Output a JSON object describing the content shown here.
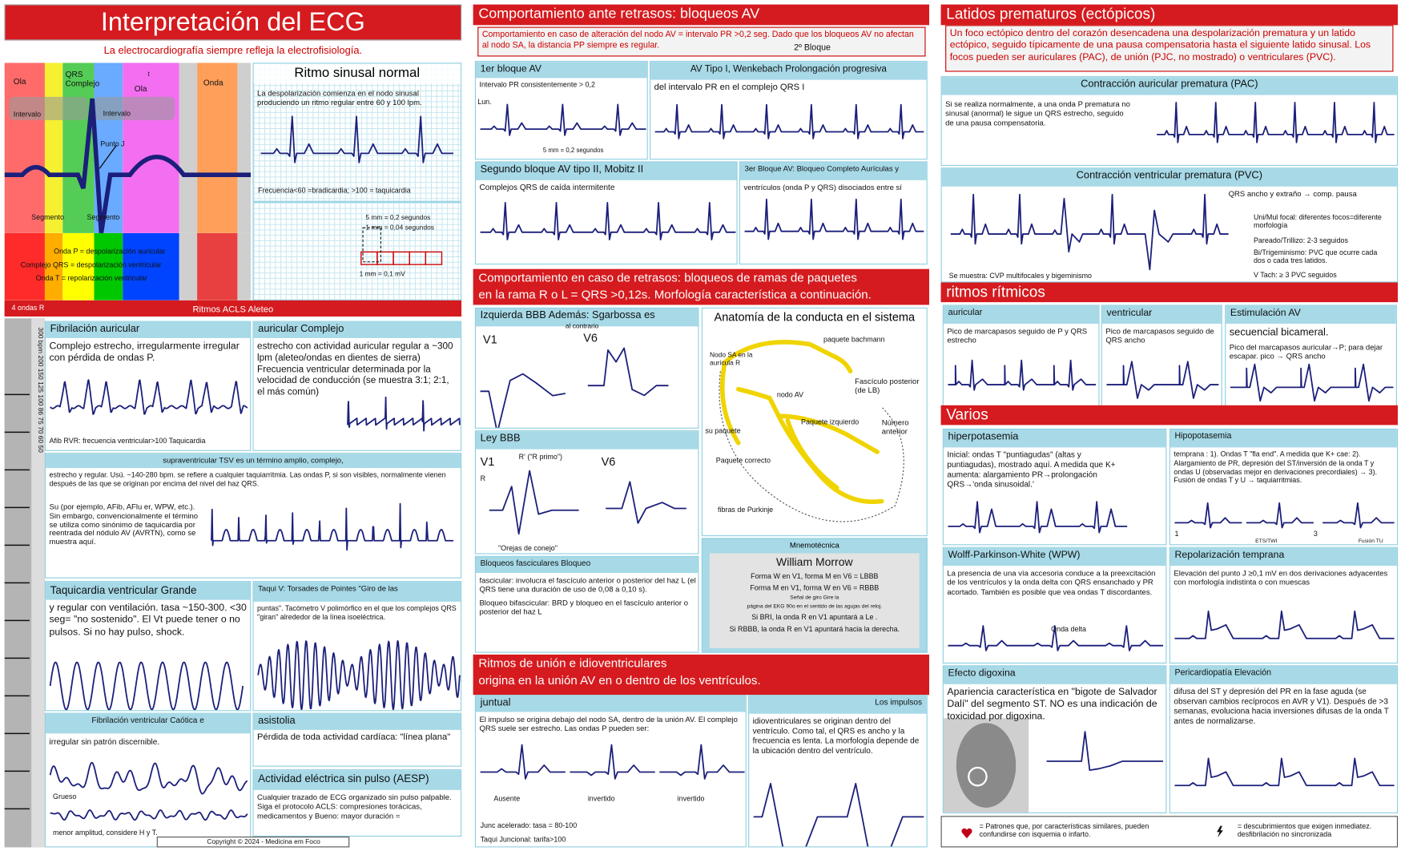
{
  "panels": [
    {
      "heading": "Interpretación del ECG"
    },
    {
      "text": [
        "La electrocardiografía siempre refleja la electrofisiología."
      ]
    },
    {
      "labels": [
        "Ola",
        "QRS Complejo",
        "t",
        "Ola",
        "Onda",
        "Intervalo",
        "Intervalo",
        "Punto J",
        "Segmento",
        "Segmento"
      ]
    },
    {
      "heading": "Ritmo sinusal normal",
      "text": [
        "La despolarización comienza en el nodo sinusal produciendo un ritmo regular entre 60 y 100 lpm."
      ],
      "labels": [
        "Frecuencia<60 =bradicardia; >100 = taquicardia"
      ]
    },
    {
      "labels": [
        "5 mm = 0,2 segundos",
        "1 mm = 0,04 segundos",
        "1 mm = 0,1 mV"
      ]
    },
    {
      "labels": [
        "Onda P = despolarización auricular",
        "Complejo QRS = despolarización ventricular",
        "Onda T = repolarización ventricular"
      ]
    },
    {
      "heading": "Ritmos ACLS Aleteo",
      "labels": [
        "4 ondas R"
      ]
    },
    {
      "labels": [
        "300 bpm 200 150 125 100 86 75 70 60 50"
      ]
    },
    {
      "heading": "Fibrilación auricular",
      "text": [
        "Complejo estrecho, irregularmente irregular con pérdida de ondas P."
      ],
      "labels": [
        "Afib RVR: frecuencia ventricular>100 Taquicardia"
      ]
    },
    {
      "heading": "auricular Complejo",
      "text": [
        "estrecho con actividad auricular regular a ~300 lpm (aleteo/ondas en dientes de sierra) Frecuencia ventricular determinada por la velocidad de conducción (se muestra 3:1; 2:1, el más común)"
      ]
    },
    {
      "heading": "supraventricular TSV es un término amplio, complejo,",
      "text": [
        "estrecho y regular. Usú. ~140-280 bpm. se refiere a cualquier taquiarritmia. Las ondas P, si son visibles, normalmente vienen después de las que se originan por encima del nivel del haz QRS."
      ],
      "labels": [
        "Su (por ejemplo, AFib, AFlu er, WPW, etc.). Sin embargo, convencionalmente el término se utiliza como sinónimo de taquicardia por reentrada del nódulo AV (AVRTN), como se muestra aquí."
      ]
    },
    {
      "heading": "Taquicardia ventricular Grande",
      "text": [
        "y regular con ventilación. tasa ~150-300. <30 seg= \"no sostenido\". El Vt puede tener o no pulsos. Si no hay pulso, shock."
      ]
    },
    {
      "heading": "Taqui V: Torsades de Pointes \"Giro de las",
      "text": [
        "puntas\". Tacómetro V polimórfico en el que los complejos QRS \"giran\" alrededor de la línea isoeléctrica."
      ]
    },
    {
      "heading": "Fibrilación ventricular Caótica e",
      "text": [
        "irregular sin patrón discernible."
      ],
      "labels": [
        "Grueso",
        "menor amplitud, considere H y T."
      ]
    },
    {
      "heading": "asistolia",
      "text": [
        "Pérdida de toda actividad cardíaca: \"línea plana\""
      ]
    },
    {
      "heading": "Actividad eléctrica sin pulso (AESP)",
      "text": [
        "Cualquier trazado de ECG organizado sin pulso palpable. Siga el protocolo ACLS: compresiones torácicas, medicamentos y Bueno: mayor duración ="
      ]
    },
    {
      "labels": [
        "Copyright © 2024 - Medicina em Foco"
      ]
    },
    {
      "heading": "Comportamiento ante retrasos: bloqueos AV"
    },
    {
      "text": [
        "Comportamiento en caso de alteración del nodo AV = intervalo PR >0,2 seg. Dado que los bloqueos AV no afectan al nodo SA, la distancia PP siempre es regular."
      ],
      "labels": [
        "2º Bloque"
      ]
    },
    {
      "heading": "1er bloque AV",
      "text": [
        "Intervalo PR consistentemente > 0,2"
      ],
      "labels": [
        "Lun.",
        "5 mm = 0,2 segundos"
      ]
    },
    {
      "heading": "AV Tipo I, Wenkebach Prolongación progresiva",
      "text": [
        "del intervalo PR en el complejo QRS I"
      ]
    },
    {
      "heading": "Segundo bloque AV tipo II, Mobitz II",
      "text": [
        "Complejos QRS de caída intermitente"
      ]
    },
    {
      "heading": "3er Bloque AV: Bloqueo Completo Aurículas y",
      "text": [
        "ventrículos (onda P y QRS) disociados entre sí"
      ]
    },
    {
      "text": [
        "Comportamiento en caso de retrasos: bloqueos de ramas de paquetes",
        "en la rama R o L = QRS >0,12s. Morfología característica a continuación."
      ]
    },
    {
      "heading": "Izquierda BBB Además: Sgarbossa es",
      "labels": [
        "al contrario",
        "V1",
        "V6"
      ]
    },
    {
      "heading": "Ley BBB",
      "labels": [
        "V1",
        "R' (\"R primo\")",
        "R",
        "V6",
        "\"Orejas de conejo\""
      ]
    },
    {
      "heading": "Anatomía de la conducta en el sistema",
      "labels": [
        "Nodo SA en la aurícula R",
        "paquete bachmann",
        "nodo AV",
        "Fascículo posterior (de LB)",
        "Paquete izquierdo",
        "Número anterior",
        "su paquete",
        "Paquete correcto",
        "fibras de Purkinje"
      ]
    },
    {
      "heading": "Bloqueos fasciculares Bloqueo",
      "text": [
        "fascicular: involucra el fascículo anterior o posterior del haz L (el QRS tiene una duración de uso de 0,08 a 0,10 s).",
        "Bloqueo bifascicular: BRD y bloqueo en el fascículo anterior o posterior del haz L"
      ]
    },
    {
      "heading": "Mnemotécnica",
      "text": [
        "William Morrow",
        "Forma W en V1, forma M en V6 = LBBB",
        "Forma M en V1, forma W en V6 = RBBB",
        "Señal de giro Gire la",
        "página del EKG 90o en el sentido de las agujas del reloj.",
        "Si BRI, la onda R en V1 apuntará a Le .",
        "Si RBBB, la onda R en V1 apuntará hacia la derecha."
      ]
    },
    {
      "text": [
        "Ritmos de unión e idioventriculares",
        "origina en la unión AV en o dentro de los ventrículos."
      ]
    },
    {
      "heading": "juntual",
      "text": [
        "El impulso se origina debajo del nodo SA, dentro de la unión AV. El complejo QRS suele ser estrecho. Las ondas P pueden ser:"
      ],
      "labels": [
        "Ausente",
        "invertido",
        "invertido",
        "Junc acelerado: tasa = 80-100",
        "Taqui Juncional: tarifa>100"
      ]
    },
    {
      "heading": "Los impulsos",
      "text": [
        "idioventriculares se originan dentro del ventrículo. Como tal, el QRS es ancho y la frecuencia es lenta. La morfología depende de la ubicación dentro del ventrículo."
      ]
    },
    {
      "heading": "Latidos prematuros (ectópicos)"
    },
    {
      "text": [
        "Un foco ectópico dentro del corazón desencadena una despolarización prematura y un latido ectópico, seguido típicamente de una pausa compensatoria hasta el siguiente latido sinusal. Los focos pueden ser auriculares (PAC), de unión (PJC, no mostrado) o ventriculares (PVC)."
      ]
    },
    {
      "heading": "Contracción auricular prematura (PAC)",
      "text": [
        "Si se realiza normalmente, a una onda P prematura no sinusal (anormal) le sigue un QRS estrecho, seguido de una pausa compensatoria."
      ]
    },
    {
      "heading": "Contracción ventricular prematura (PVC)",
      "labels": [
        "QRS ancho y extraño → comp. pausa",
        "Uni/Mul focal: diferentes focos=diferente morfología",
        "Pareado/Trillizo: 2-3 seguidos",
        "Bi/Trigeminismo: PVC que ocurre cada dos o cada tres latidos.",
        "V Tach: ≥ 3 PVC seguidos",
        "Se muestra: CVP multifocales y bigeminismo"
      ]
    },
    {
      "heading": "ritmos rítmicos"
    },
    {
      "heading": "auricular",
      "text": [
        "Pico de marcapasos seguido de P y QRS estrecho"
      ]
    },
    {
      "heading": "ventricular",
      "text": [
        "Pico de marcapasos seguido de QRS ancho"
      ]
    },
    {
      "heading": "Estimulación AV",
      "text": [
        "secuencial bicameral.",
        "Pico del marcapasos auricular→P; para dejar escapar. pico → QRS ancho"
      ]
    },
    {
      "heading": "Varios"
    },
    {
      "heading": "hiperpotasemia",
      "text": [
        "Inicial: ondas T \"puntiagudas\" (altas y puntiagudas), mostrado aquí. A medida que K+ aumenta: alargamiento PR→prolongación QRS→'onda sinusoidal.'"
      ]
    },
    {
      "heading": "Hipopotasemia",
      "text": [
        "temprana : 1). Ondas T \"fla end\". A medida que K+ cae: 2). Alargamiento de PR, depresión del ST/inversión de la onda T y ondas U (observadas mejor en derivaciones precordiales) → 3). Fusión de ondas T y U → taquiarritmias."
      ],
      "labels": [
        "1",
        "ETS/TWI",
        "3",
        "Fusión TU"
      ]
    },
    {
      "heading": "Wolff-Parkinson-White (WPW)",
      "text": [
        "La presencia de una vía accesoria conduce a la preexcitación de los ventrículos y la onda delta con QRS ensanchado y PR acortado. También es posible que vea ondas T discordantes."
      ],
      "labels": [
        "Onda delta"
      ]
    },
    {
      "heading": "Repolarización temprana",
      "text": [
        "Elevación del punto J ≥0,1 mV en dos derivaciones adyacentes con morfología indistinta o con muescas"
      ]
    },
    {
      "heading": "Efecto digoxina",
      "text": [
        "Apariencia característica en \"bigote de Salvador Dalí\" del segmento ST. NO es una indicación de toxicidad por digoxina."
      ]
    },
    {
      "heading": "Pericardiopatía Elevación",
      "text": [
        "difusa del ST y depresión del PR en la fase aguda (se observan cambios recíprocos en AVR y V1). Después de >3 semanas, evoluciona hacia inversiones difusas de la onda T antes de normalizarse."
      ]
    },
    {
      "labels": [
        "= Patrones que, por características similares, pueden confundirse con isquemia o infarto.",
        "= descubrimientos que exigen inmediatez. desfibrilación no sincronizada"
      ]
    }
  ]
}
